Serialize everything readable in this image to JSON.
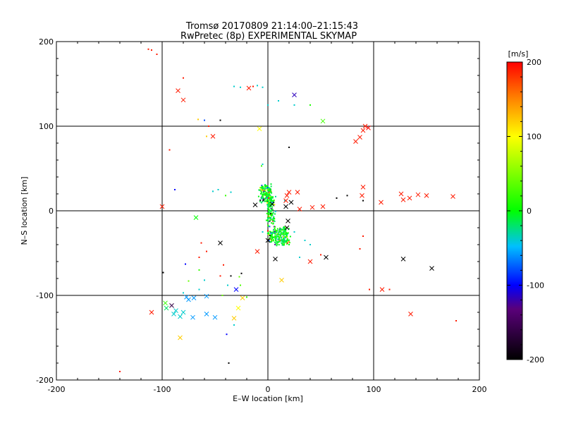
{
  "chart_data": {
    "type": "scatter",
    "title": "Tromsø 20170809 21:14:00–21:15:43",
    "subtitle": "RwPretec (8p) EXPERIMENTAL SKYMAP",
    "xlabel": "E–W location [km]",
    "ylabel": "N–S location [km]",
    "xlim": [
      -200,
      200
    ],
    "ylim": [
      -200,
      200
    ],
    "xticks": [
      -200,
      -100,
      0,
      100,
      200
    ],
    "yticks": [
      -200,
      -100,
      0,
      100,
      200
    ],
    "grid": "major ticks",
    "colorbar": {
      "unit": "[m/s]",
      "min": -200,
      "max": 200,
      "ticks": [
        -200,
        -100,
        0,
        100,
        200
      ]
    },
    "crosses": [
      [
        -85,
        142,
        190
      ],
      [
        -80,
        131,
        190
      ],
      [
        -18,
        145,
        190
      ],
      [
        25,
        137,
        -115
      ],
      [
        52,
        106,
        25
      ],
      [
        -52,
        88,
        190
      ],
      [
        -8,
        97,
        100
      ],
      [
        87,
        87,
        190
      ],
      [
        90,
        95,
        190
      ],
      [
        92,
        100,
        190
      ],
      [
        95,
        98,
        200
      ],
      [
        83,
        82,
        190
      ],
      [
        -100,
        5,
        190
      ],
      [
        -68,
        -8,
        0
      ],
      [
        -45,
        -38,
        -200
      ],
      [
        -10,
        -48,
        190
      ],
      [
        0,
        -35,
        -200
      ],
      [
        7,
        -57,
        -200
      ],
      [
        20,
        22,
        190
      ],
      [
        18,
        18,
        190
      ],
      [
        17,
        12,
        190
      ],
      [
        28,
        22,
        190
      ],
      [
        42,
        4,
        190
      ],
      [
        30,
        2,
        190
      ],
      [
        52,
        5,
        190
      ],
      [
        90,
        28,
        190
      ],
      [
        89,
        18,
        190
      ],
      [
        107,
        10,
        190
      ],
      [
        126,
        20,
        190
      ],
      [
        128,
        13,
        190
      ],
      [
        134,
        15,
        190
      ],
      [
        142,
        19,
        190
      ],
      [
        150,
        18,
        190
      ],
      [
        175,
        17,
        190
      ],
      [
        18,
        -20,
        -200
      ],
      [
        19,
        -12,
        -200
      ],
      [
        17,
        5,
        -200
      ],
      [
        22,
        10,
        -200
      ],
      [
        4,
        8,
        -200
      ],
      [
        -12,
        7,
        -200
      ],
      [
        40,
        -60,
        190
      ],
      [
        55,
        -55,
        -200
      ],
      [
        128,
        -57,
        -200
      ],
      [
        155,
        -68,
        -200
      ],
      [
        108,
        -93,
        190
      ],
      [
        135,
        -122,
        190
      ],
      [
        13,
        -82,
        120
      ],
      [
        -30,
        -93,
        -100
      ],
      [
        -58,
        -101,
        -60
      ],
      [
        -70,
        -103,
        -60
      ],
      [
        -75,
        -105,
        -60
      ],
      [
        -77,
        -102,
        -60
      ],
      [
        -91,
        -112,
        -160
      ],
      [
        -97,
        -109,
        20
      ],
      [
        -96,
        -115,
        -20
      ],
      [
        -80,
        -120,
        -40
      ],
      [
        -83,
        -125,
        -40
      ],
      [
        -87,
        -118,
        -40
      ],
      [
        -89,
        -122,
        -40
      ],
      [
        -71,
        -126,
        -60
      ],
      [
        -58,
        -122,
        -60
      ],
      [
        -50,
        -126,
        -60
      ],
      [
        -110,
        -120,
        190
      ],
      [
        -32,
        -127,
        120
      ],
      [
        -83,
        -150,
        120
      ],
      [
        -28,
        -115,
        100
      ],
      [
        -24,
        -103,
        120
      ]
    ],
    "dots": [
      [
        -113,
        191,
        190
      ],
      [
        -110,
        190,
        190
      ],
      [
        -105,
        185,
        190
      ],
      [
        -80,
        157,
        190
      ],
      [
        -14,
        147,
        190
      ],
      [
        -32,
        147,
        -40
      ],
      [
        -26,
        146,
        -40
      ],
      [
        -10,
        148,
        -40
      ],
      [
        -5,
        146,
        -40
      ],
      [
        -45,
        107,
        -200
      ],
      [
        -60,
        107,
        -80
      ],
      [
        -66,
        108,
        120
      ],
      [
        -56,
        100,
        190
      ],
      [
        -93,
        72,
        190
      ],
      [
        -58,
        88,
        120
      ],
      [
        0,
        125,
        -40
      ],
      [
        10,
        130,
        -40
      ],
      [
        25,
        125,
        -40
      ],
      [
        40,
        125,
        10
      ],
      [
        20,
        75,
        -200
      ],
      [
        -88,
        25,
        -100
      ],
      [
        -63,
        -38,
        190
      ],
      [
        -58,
        -48,
        190
      ],
      [
        -65,
        -55,
        190
      ],
      [
        -78,
        -63,
        -100
      ],
      [
        -99,
        -73,
        -200
      ],
      [
        -65,
        -70,
        20
      ],
      [
        -42,
        -64,
        190
      ],
      [
        -35,
        -77,
        -200
      ],
      [
        -45,
        -77,
        190
      ],
      [
        -25,
        -74,
        -200
      ],
      [
        -75,
        -83,
        40
      ],
      [
        -80,
        -97,
        -40
      ],
      [
        -60,
        -82,
        -40
      ],
      [
        -65,
        -93,
        -40
      ],
      [
        -38,
        -88,
        -40
      ],
      [
        -43,
        -100,
        40
      ],
      [
        -39,
        -146,
        -100
      ],
      [
        -37,
        -180,
        -200
      ],
      [
        -140,
        -190,
        190
      ],
      [
        -32,
        -135,
        -40
      ],
      [
        -20,
        -102,
        20
      ],
      [
        -26,
        -88,
        30
      ],
      [
        -27,
        -78,
        40
      ],
      [
        50,
        -52,
        190
      ],
      [
        87,
        -45,
        190
      ],
      [
        90,
        -30,
        190
      ],
      [
        96,
        -93,
        190
      ],
      [
        115,
        -93,
        190
      ],
      [
        178,
        -130,
        190
      ],
      [
        65,
        15,
        -200
      ],
      [
        75,
        18,
        -200
      ],
      [
        90,
        12,
        -200
      ],
      [
        -35,
        22,
        -40
      ],
      [
        -40,
        18,
        20
      ],
      [
        -47,
        25,
        -40
      ],
      [
        -52,
        23,
        -40
      ],
      [
        -5,
        55,
        -40
      ],
      [
        -6,
        53,
        20
      ],
      [
        16,
        12,
        -40
      ],
      [
        25,
        -25,
        -40
      ],
      [
        35,
        -35,
        -40
      ],
      [
        30,
        -55,
        -40
      ],
      [
        40,
        -40,
        -40
      ],
      [
        20,
        -40,
        0
      ],
      [
        -5,
        -25,
        -40
      ]
    ]
  }
}
